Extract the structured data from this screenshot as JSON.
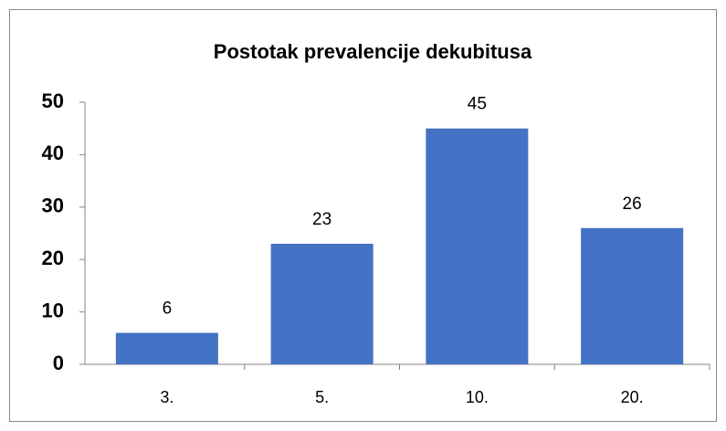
{
  "chart_data": {
    "type": "bar",
    "title": "Postotak prevalencije dekubitusa",
    "categories": [
      "3.",
      "5.",
      "10.",
      "20."
    ],
    "values": [
      6,
      23,
      45,
      26
    ],
    "color": "#4472c4",
    "ylim": [
      0,
      50
    ],
    "yticks": [
      0,
      10,
      20,
      30,
      40,
      50
    ],
    "grid": false,
    "data_labels": true
  }
}
